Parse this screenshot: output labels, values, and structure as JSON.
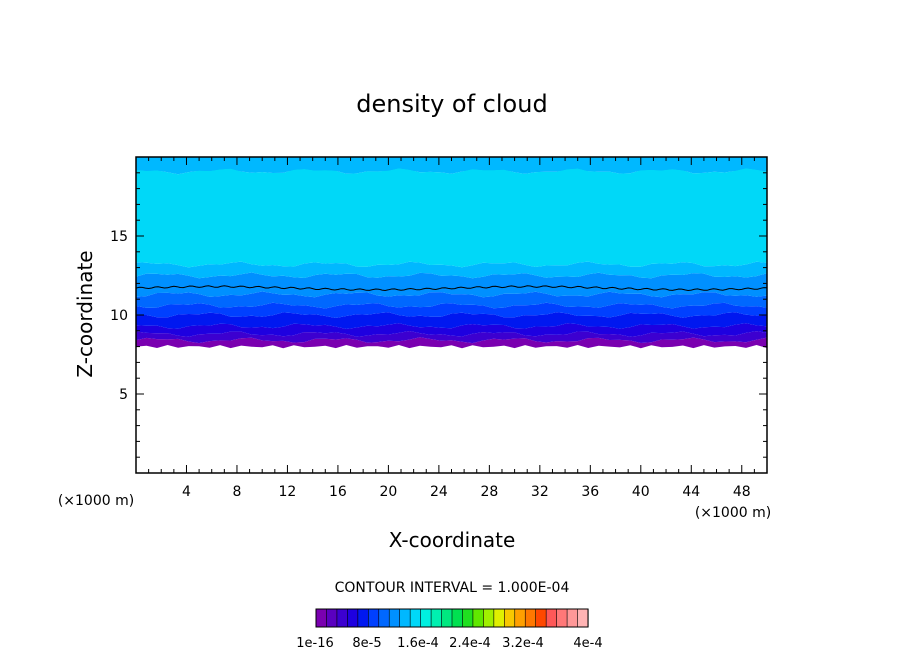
{
  "chart_data": {
    "type": "contour",
    "title": "density of cloud",
    "xlabel": "X-coordinate",
    "ylabel": "Z-coordinate",
    "x_unit_left": "(×1000 m)",
    "x_unit_right": "(×1000 m)",
    "xlim": [
      0,
      50
    ],
    "ylim": [
      0,
      20
    ],
    "x_ticks": [
      4,
      8,
      12,
      16,
      20,
      24,
      28,
      32,
      36,
      40,
      44,
      48
    ],
    "y_ticks": [
      5,
      10,
      15
    ],
    "contour_interval_text": "CONTOUR INTERVAL = 1.000E-04",
    "colorbar_labels": [
      "1e-16",
      "8e-5",
      "1.6e-4",
      "2.4e-4",
      "3.2e-4",
      "4e-4"
    ],
    "colorbar_colors": [
      "#7a00b0",
      "#5a00c0",
      "#3c00d0",
      "#1e00e0",
      "#0018f0",
      "#0040ff",
      "#0068ff",
      "#0090ff",
      "#00b8ff",
      "#00d8f8",
      "#00f0e0",
      "#00f0b0",
      "#00e880",
      "#00e050",
      "#20e020",
      "#60e800",
      "#a0f000",
      "#e0f000",
      "#f8c800",
      "#ffa000",
      "#ff7800",
      "#ff4800",
      "#ff5858",
      "#ff7878",
      "#ff9898",
      "#ffb4b4"
    ],
    "layers": [
      {
        "level": "1e-16",
        "color": "#7a00b0",
        "z_bottom": 8.0
      },
      {
        "level": "",
        "color": "#3c00d0",
        "z_bottom": 8.4
      },
      {
        "level": "",
        "color": "#1e00e0",
        "z_bottom": 8.8
      },
      {
        "level": "",
        "color": "#0018f0",
        "z_bottom": 9.3
      },
      {
        "level": "",
        "color": "#0040ff",
        "z_bottom": 10.0
      },
      {
        "level": "",
        "color": "#0068ff",
        "z_bottom": 10.6
      },
      {
        "level": "",
        "color": "#0090ff",
        "z_bottom": 11.3
      },
      {
        "level": "",
        "color": "#00b8ff",
        "z_bottom": 12.5
      },
      {
        "level": "",
        "color": "#00d8f8",
        "z_bottom": 13.2
      },
      {
        "level": "",
        "color": "#00b8ff",
        "z_bottom": 19.1
      }
    ],
    "contour_line_z": 11.7,
    "grid": false,
    "legend": "bottom-colorbar"
  }
}
